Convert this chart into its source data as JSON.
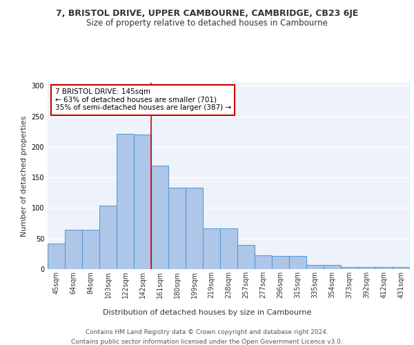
{
  "title": "7, BRISTOL DRIVE, UPPER CAMBOURNE, CAMBRIDGE, CB23 6JE",
  "subtitle": "Size of property relative to detached houses in Cambourne",
  "xlabel": "Distribution of detached houses by size in Cambourne",
  "ylabel": "Number of detached properties",
  "categories": [
    "45sqm",
    "64sqm",
    "84sqm",
    "103sqm",
    "122sqm",
    "142sqm",
    "161sqm",
    "180sqm",
    "199sqm",
    "219sqm",
    "238sqm",
    "257sqm",
    "277sqm",
    "296sqm",
    "315sqm",
    "335sqm",
    "354sqm",
    "373sqm",
    "392sqm",
    "412sqm",
    "431sqm"
  ],
  "values": [
    42,
    64,
    64,
    104,
    221,
    220,
    169,
    133,
    133,
    67,
    67,
    40,
    23,
    22,
    21,
    7,
    7,
    3,
    3,
    3,
    3
  ],
  "bar_color": "#aec6e8",
  "bar_edge_color": "#5b9bd5",
  "background_color": "#eef3fb",
  "grid_color": "#ffffff",
  "annotation_text": "7 BRISTOL DRIVE: 145sqm\n← 63% of detached houses are smaller (701)\n35% of semi-detached houses are larger (387) →",
  "annotation_box_color": "#ffffff",
  "annotation_box_edge_color": "#cc0000",
  "vline_x_index": 5,
  "vline_color": "#cc0000",
  "ylim": [
    0,
    305
  ],
  "footer": "Contains HM Land Registry data © Crown copyright and database right 2024.\nContains public sector information licensed under the Open Government Licence v3.0.",
  "title_fontsize": 9,
  "subtitle_fontsize": 8.5,
  "xlabel_fontsize": 8,
  "ylabel_fontsize": 8,
  "tick_fontsize": 7,
  "annotation_fontsize": 7.5,
  "footer_fontsize": 6.5
}
